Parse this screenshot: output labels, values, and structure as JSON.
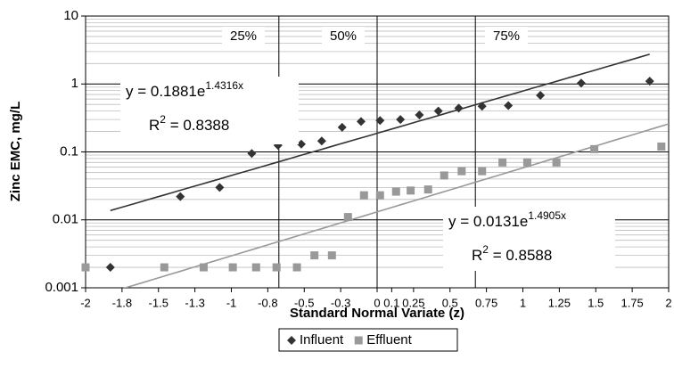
{
  "chart_data": {
    "type": "scatter",
    "x_label": "Standard Normal Variate (z)",
    "y_label": "Zinc EMC, mg/L",
    "log_y": true,
    "grid": true,
    "legend": "bottom",
    "xlim": [
      -2,
      2
    ],
    "ylim": [
      0.001,
      10
    ],
    "xticks": [
      -2,
      {
        "value": -1.75,
        "label": "-1.8"
      },
      -1.5,
      {
        "value": -1.25,
        "label": "-1.3"
      },
      -1,
      {
        "value": -0.75,
        "label": "-0.8"
      },
      -0.5,
      {
        "value": -0.25,
        "label": "-0.3"
      },
      0,
      0.1,
      0.25,
      0.5,
      0.75,
      1,
      1.25,
      1.5,
      1.75,
      2
    ],
    "yticks": [
      0.001,
      0.01,
      0.1,
      1,
      10
    ],
    "percentile_lines": [
      {
        "value": -0.674,
        "label": "25%"
      },
      {
        "value": 0,
        "label": "50%"
      },
      {
        "value": 0.674,
        "label": "75%"
      }
    ],
    "series": [
      {
        "name": "Influent",
        "color": "#333333",
        "marker": "diamond",
        "x": [
          -1.83,
          -1.35,
          -1.08,
          -0.86,
          -0.68,
          -0.52,
          -0.38,
          -0.24,
          -0.11,
          0.02,
          0.16,
          0.29,
          0.42,
          0.56,
          0.72,
          0.9,
          1.12,
          1.4,
          1.87
        ],
        "values": [
          0.002,
          0.022,
          0.03,
          0.095,
          0.125,
          0.13,
          0.145,
          0.23,
          0.28,
          0.29,
          0.3,
          0.35,
          0.4,
          0.44,
          0.47,
          0.48,
          0.68,
          1.03,
          1.1
        ],
        "trendline": {
          "color": "#333333",
          "a": 0.1881,
          "b": 1.4316,
          "x_range": [
            -1.83,
            1.87
          ],
          "equation": "y = 0.1881e",
          "equation_exponent": "1.4316x",
          "r2_label": "R",
          "r2_exponent": "2",
          "r2_value": " = 0.8388"
        }
      },
      {
        "name": "Effluent",
        "color": "#999999",
        "marker": "square",
        "x": [
          -2,
          -1.46,
          -1.19,
          -0.99,
          -0.83,
          -0.69,
          -0.55,
          -0.43,
          -0.31,
          -0.2,
          -0.09,
          0.02,
          0.13,
          0.23,
          0.35,
          0.46,
          0.58,
          0.72,
          0.86,
          1.03,
          1.23,
          1.49,
          1.95
        ],
        "values": [
          0.002,
          0.002,
          0.002,
          0.002,
          0.002,
          0.002,
          0.002,
          0.003,
          0.003,
          0.011,
          0.023,
          0.023,
          0.026,
          0.027,
          0.028,
          0.045,
          0.052,
          0.052,
          0.07,
          0.07,
          0.07,
          0.11,
          0.12
        ],
        "trendline": {
          "color": "#999999",
          "a": 0.0131,
          "b": 1.4905,
          "x_range": [
            -1.8,
            2
          ],
          "equation": "y = 0.0131e",
          "equation_exponent": "1.4905x",
          "r2_label": "R",
          "r2_exponent": "2",
          "r2_value": " = 0.8588"
        }
      }
    ]
  }
}
